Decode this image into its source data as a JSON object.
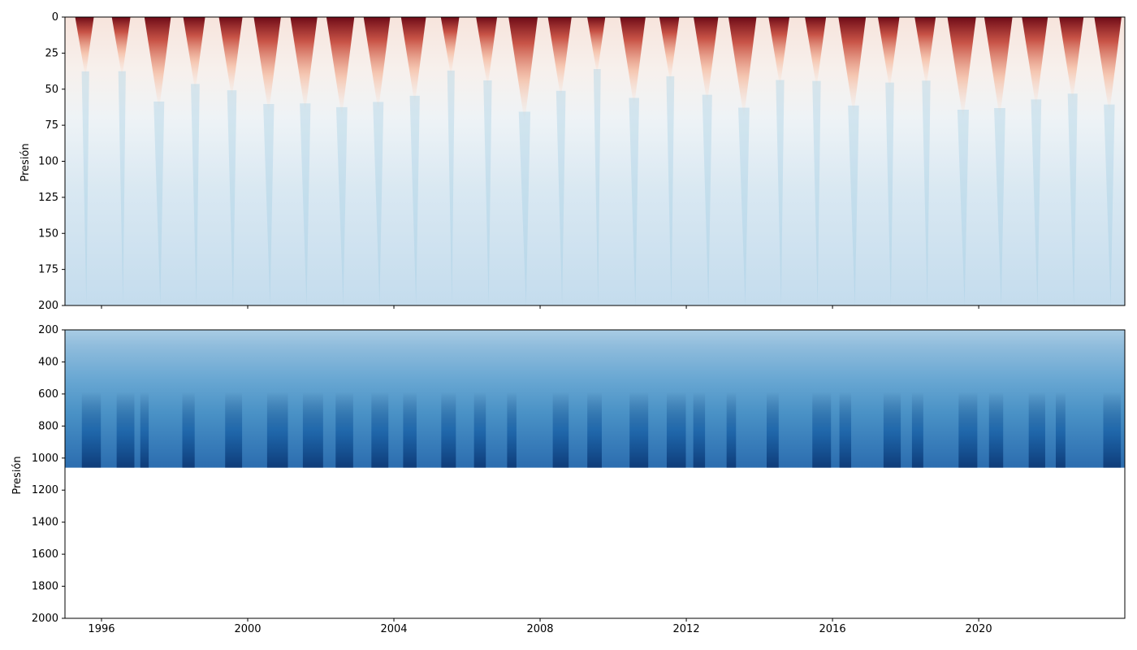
{
  "chart_data": [
    {
      "type": "heatmap",
      "title": "",
      "xlabel": "",
      "ylabel": "Presión",
      "x_range": [
        "1995-01-01",
        "2023-12-31"
      ],
      "x_tick_labels": [
        "1996",
        "2000",
        "2004",
        "2008",
        "2012",
        "2016",
        "2020"
      ],
      "x_tick_labels_visible": false,
      "ylim": [
        200,
        0
      ],
      "y_ticks": [
        0,
        25,
        50,
        75,
        100,
        125,
        150,
        175,
        200
      ],
      "colormap": "RdBu_r",
      "warm_color": "#b2182b",
      "cool_color": "#6baed6",
      "pattern": "seasonal warm maxima near surface (0–100) each year, cooler values with depth"
    },
    {
      "type": "heatmap",
      "title": "",
      "xlabel": "",
      "ylabel": "Presión",
      "x_range": [
        "1995-01-01",
        "2023-12-31"
      ],
      "x_tick_labels": [
        "1996",
        "2000",
        "2004",
        "2008",
        "2012",
        "2016",
        "2020"
      ],
      "ylim": [
        2000,
        200
      ],
      "y_ticks": [
        200,
        400,
        600,
        800,
        1000,
        1200,
        1400,
        1600,
        1800,
        2000
      ],
      "data_max_pressure": 1060,
      "colormap": "Blues",
      "light_color": "#c6dbef",
      "dark_color": "#08306b",
      "pattern": "values increase with depth from 200 to ~1060; no data below ~1060"
    }
  ]
}
